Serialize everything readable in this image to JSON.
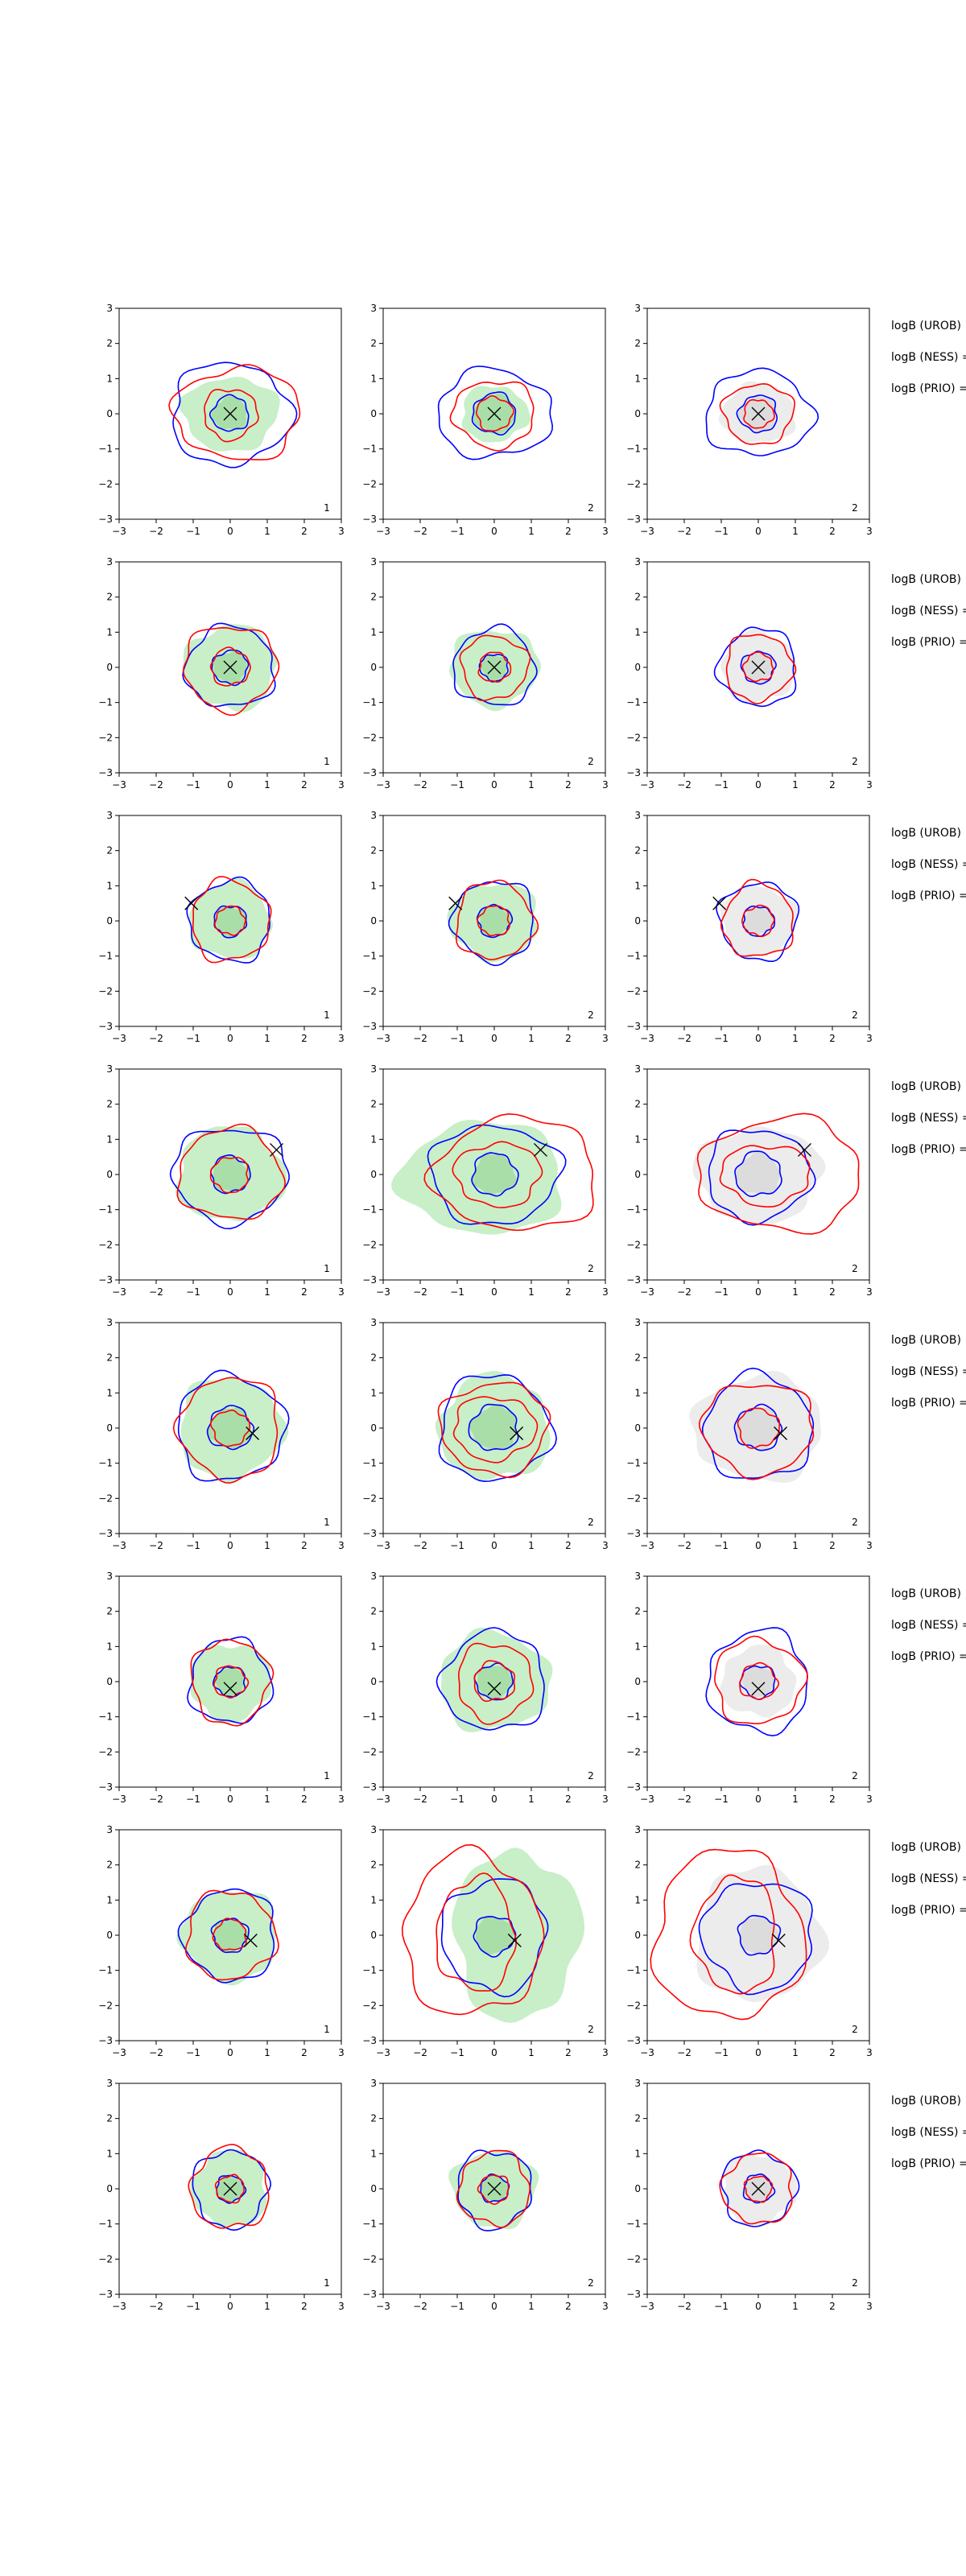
{
  "figure": {
    "columns": 3,
    "rows": 8,
    "side_label_texts": [
      "logB (UROB)",
      "logB (NESS) =",
      "logB (PRIO) ="
    ]
  },
  "chart_data": {
    "type": "scatter",
    "xlim": [
      -3,
      3
    ],
    "ylim": [
      -3,
      3
    ],
    "xticks": [
      -3,
      -2,
      -1,
      0,
      1,
      2,
      3
    ],
    "yticks": [
      -3,
      -2,
      -1,
      0,
      1,
      2,
      3
    ],
    "grid": false,
    "colors": {
      "blue": "#0000ff",
      "red": "#ff0000",
      "fill_green": "#c8efc8",
      "fill_grey": "#ececec",
      "marker": "#000000"
    },
    "rows": [
      {
        "marker": [
          0,
          0
        ],
        "corner_labels": [
          "1",
          "2",
          "2"
        ]
      },
      {
        "marker": [
          0,
          0
        ],
        "corner_labels": [
          "1",
          "2",
          "2"
        ]
      },
      {
        "marker": [
          -1.05,
          0.5
        ],
        "corner_labels": [
          "1",
          "2",
          "2"
        ]
      },
      {
        "marker": [
          1.25,
          0.7
        ],
        "corner_labels": [
          "1",
          "2",
          "2"
        ]
      },
      {
        "marker": [
          0.6,
          -0.15
        ],
        "corner_labels": [
          "1",
          "2",
          "2"
        ]
      },
      {
        "marker": [
          0,
          -0.2
        ],
        "corner_labels": [
          "1",
          "2",
          "2"
        ]
      },
      {
        "marker": [
          0.55,
          -0.15
        ],
        "corner_labels": [
          "1",
          "2",
          "2"
        ]
      },
      {
        "marker": [
          0,
          0
        ],
        "corner_labels": [
          "1",
          "2",
          "2"
        ]
      }
    ]
  }
}
